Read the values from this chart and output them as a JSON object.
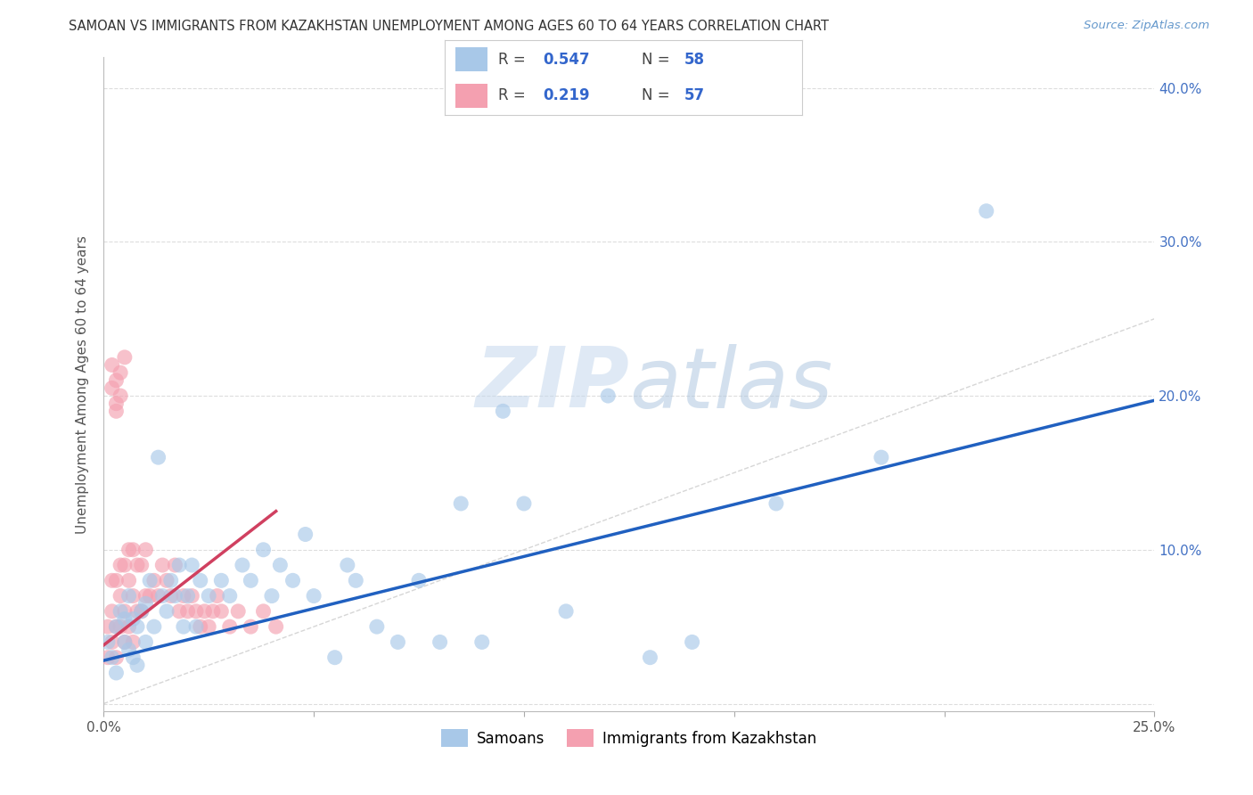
{
  "title": "SAMOAN VS IMMIGRANTS FROM KAZAKHSTAN UNEMPLOYMENT AMONG AGES 60 TO 64 YEARS CORRELATION CHART",
  "source": "Source: ZipAtlas.com",
  "ylabel": "Unemployment Among Ages 60 to 64 years",
  "xlim": [
    0.0,
    0.25
  ],
  "ylim": [
    -0.005,
    0.42
  ],
  "xticks": [
    0.0,
    0.05,
    0.1,
    0.15,
    0.2,
    0.25
  ],
  "yticks": [
    0.0,
    0.1,
    0.2,
    0.3,
    0.4
  ],
  "xtick_labels": [
    "0.0%",
    "",
    "",
    "",
    "",
    "25.0%"
  ],
  "ytick_labels_right": [
    "",
    "10.0%",
    "20.0%",
    "30.0%",
    "40.0%"
  ],
  "watermark": "ZIPatlas",
  "legend_blue_label": "Samoans",
  "legend_pink_label": "Immigrants from Kazakhstan",
  "blue_R": 0.547,
  "blue_N": 58,
  "pink_R": 0.219,
  "pink_N": 57,
  "blue_color": "#a8c8e8",
  "pink_color": "#f4a0b0",
  "blue_line_color": "#2060c0",
  "pink_line_color": "#d04060",
  "diagonal_color": "#cccccc",
  "background_color": "#ffffff",
  "grid_color": "#dddddd",
  "samoans_x": [
    0.001,
    0.002,
    0.003,
    0.003,
    0.004,
    0.005,
    0.005,
    0.006,
    0.006,
    0.007,
    0.007,
    0.008,
    0.008,
    0.009,
    0.01,
    0.01,
    0.011,
    0.012,
    0.013,
    0.014,
    0.015,
    0.016,
    0.017,
    0.018,
    0.019,
    0.02,
    0.021,
    0.022,
    0.023,
    0.025,
    0.028,
    0.03,
    0.033,
    0.035,
    0.038,
    0.04,
    0.042,
    0.045,
    0.048,
    0.05,
    0.055,
    0.058,
    0.06,
    0.065,
    0.07,
    0.075,
    0.08,
    0.085,
    0.09,
    0.095,
    0.1,
    0.11,
    0.12,
    0.13,
    0.14,
    0.16,
    0.185,
    0.21
  ],
  "samoans_y": [
    0.04,
    0.03,
    0.05,
    0.02,
    0.06,
    0.04,
    0.055,
    0.035,
    0.07,
    0.03,
    0.055,
    0.05,
    0.025,
    0.06,
    0.04,
    0.065,
    0.08,
    0.05,
    0.16,
    0.07,
    0.06,
    0.08,
    0.07,
    0.09,
    0.05,
    0.07,
    0.09,
    0.05,
    0.08,
    0.07,
    0.08,
    0.07,
    0.09,
    0.08,
    0.1,
    0.07,
    0.09,
    0.08,
    0.11,
    0.07,
    0.03,
    0.09,
    0.08,
    0.05,
    0.04,
    0.08,
    0.04,
    0.13,
    0.04,
    0.19,
    0.13,
    0.06,
    0.2,
    0.03,
    0.04,
    0.13,
    0.16,
    0.32
  ],
  "kazakhstan_x": [
    0.001,
    0.001,
    0.002,
    0.002,
    0.002,
    0.003,
    0.003,
    0.003,
    0.004,
    0.004,
    0.004,
    0.005,
    0.005,
    0.005,
    0.006,
    0.006,
    0.006,
    0.007,
    0.007,
    0.007,
    0.008,
    0.008,
    0.009,
    0.009,
    0.01,
    0.01,
    0.011,
    0.012,
    0.013,
    0.014,
    0.015,
    0.016,
    0.017,
    0.018,
    0.019,
    0.02,
    0.021,
    0.022,
    0.023,
    0.024,
    0.025,
    0.026,
    0.027,
    0.028,
    0.03,
    0.032,
    0.035,
    0.038,
    0.041,
    0.002,
    0.003,
    0.004,
    0.005,
    0.004,
    0.003,
    0.002,
    0.003
  ],
  "kazakhstan_y": [
    0.03,
    0.05,
    0.04,
    0.06,
    0.08,
    0.03,
    0.05,
    0.08,
    0.05,
    0.07,
    0.09,
    0.04,
    0.06,
    0.09,
    0.05,
    0.08,
    0.1,
    0.04,
    0.07,
    0.1,
    0.06,
    0.09,
    0.06,
    0.09,
    0.07,
    0.1,
    0.07,
    0.08,
    0.07,
    0.09,
    0.08,
    0.07,
    0.09,
    0.06,
    0.07,
    0.06,
    0.07,
    0.06,
    0.05,
    0.06,
    0.05,
    0.06,
    0.07,
    0.06,
    0.05,
    0.06,
    0.05,
    0.06,
    0.05,
    0.22,
    0.21,
    0.215,
    0.225,
    0.2,
    0.195,
    0.205,
    0.19
  ],
  "blue_line_x0": 0.0,
  "blue_line_x1": 0.25,
  "blue_line_y0": 0.028,
  "blue_line_y1": 0.197,
  "pink_line_x0": 0.0,
  "pink_line_x1": 0.041,
  "pink_line_y0": 0.038,
  "pink_line_y1": 0.125
}
